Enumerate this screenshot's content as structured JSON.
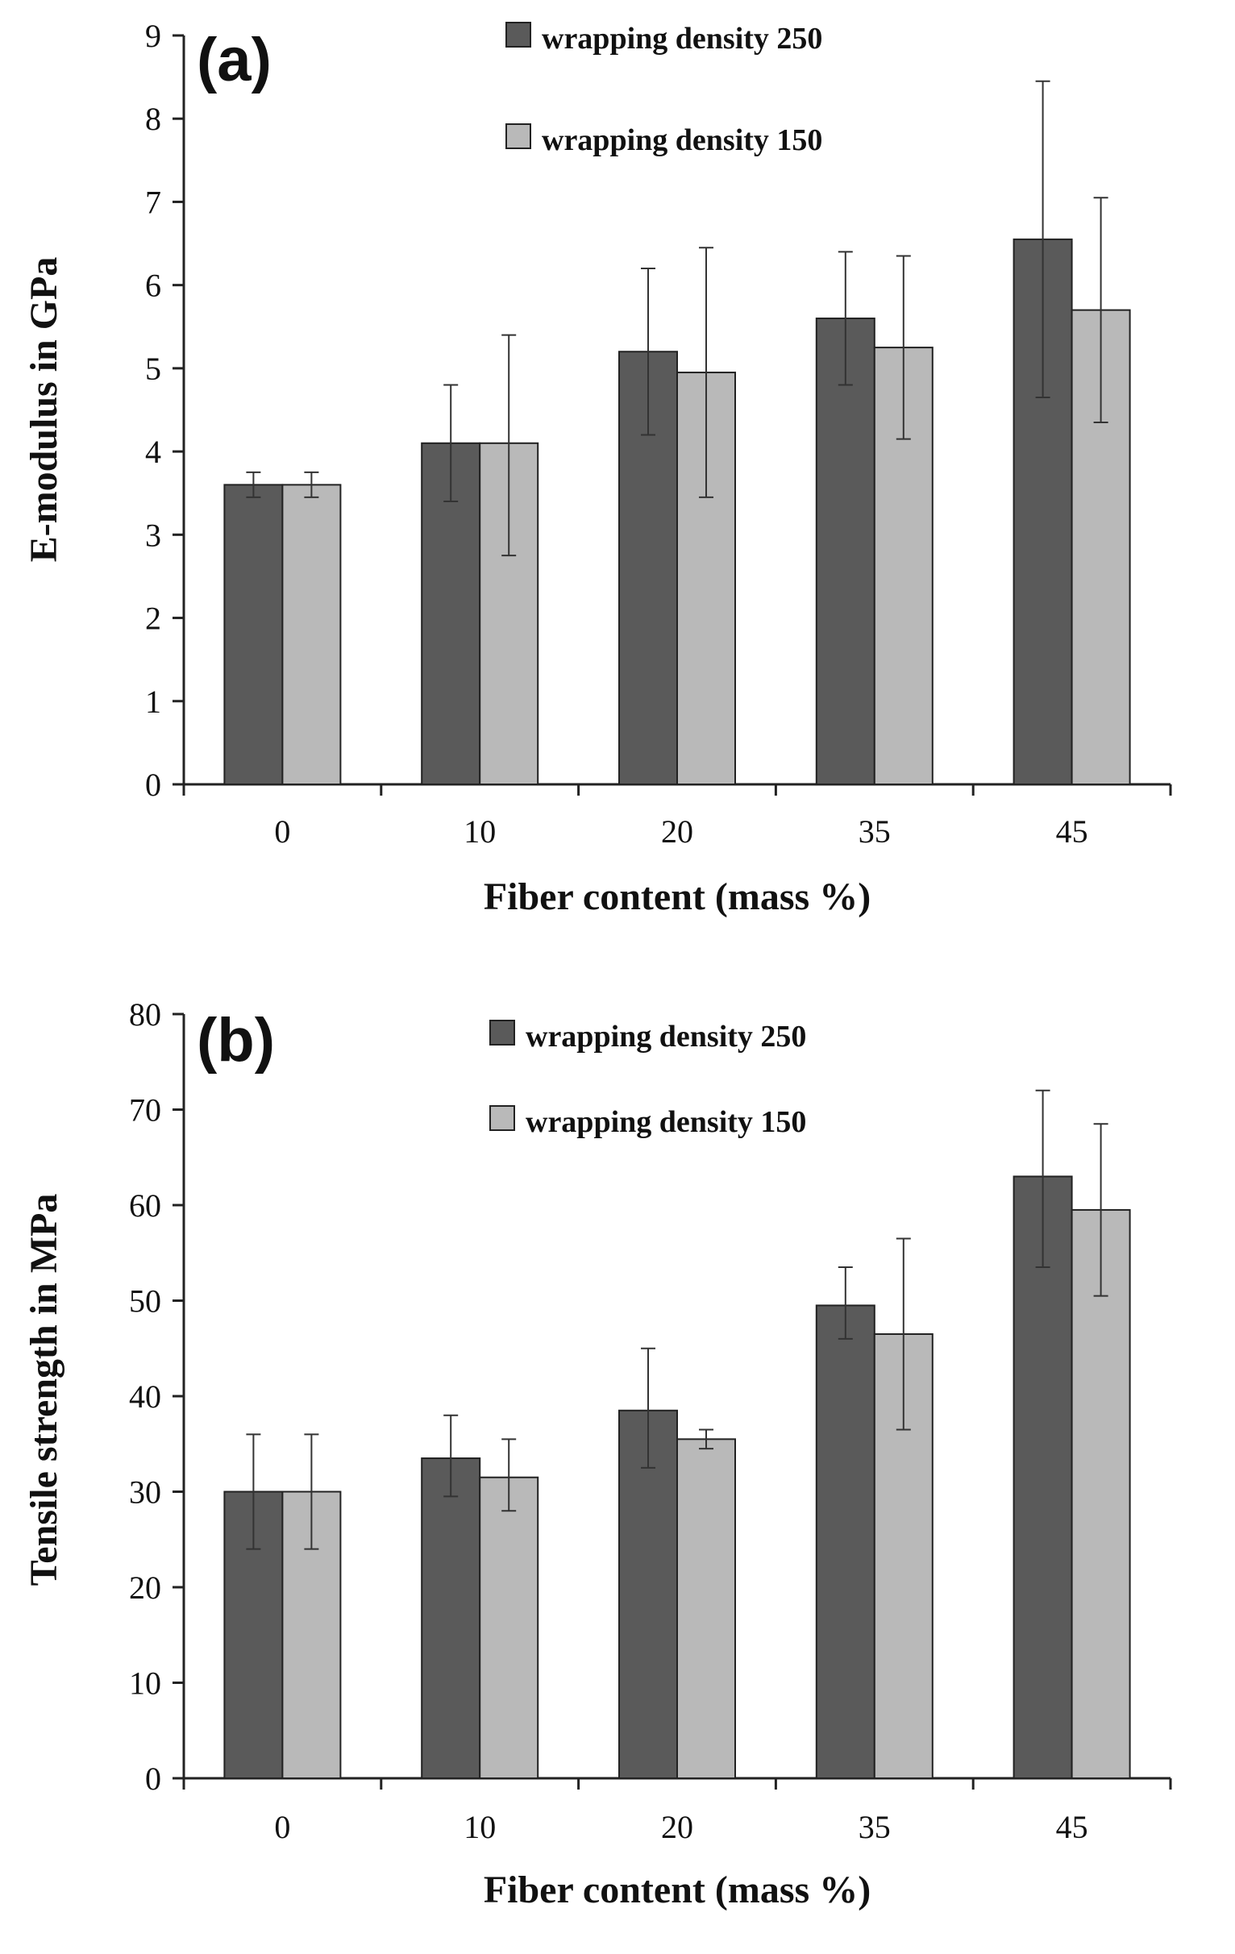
{
  "colors": {
    "series_250": "#5a5a5a",
    "series_150": "#b9b9b9",
    "axis": "#222222"
  },
  "chart_data": [
    {
      "type": "bar",
      "panel_label": "(a)",
      "title": "",
      "xlabel": "Fiber content (mass %)",
      "ylabel": "E-modulus  in GPa",
      "ylim": [
        0,
        9
      ],
      "yticks": [
        0,
        1,
        2,
        3,
        4,
        5,
        6,
        7,
        8,
        9
      ],
      "categories": [
        "0",
        "10",
        "20",
        "35",
        "45"
      ],
      "legend_position": "top-center",
      "series": [
        {
          "name": "wrapping density 250",
          "values": [
            3.6,
            4.1,
            5.2,
            5.6,
            6.55
          ],
          "error_low": [
            3.45,
            3.4,
            4.2,
            4.8,
            4.65
          ],
          "error_high": [
            3.75,
            4.8,
            6.2,
            6.4,
            8.45
          ]
        },
        {
          "name": "wrapping density 150",
          "values": [
            3.6,
            4.1,
            4.95,
            5.25,
            5.7
          ],
          "error_low": [
            3.45,
            2.75,
            3.45,
            4.15,
            4.35
          ],
          "error_high": [
            3.75,
            5.4,
            6.45,
            6.35,
            7.05
          ]
        }
      ]
    },
    {
      "type": "bar",
      "panel_label": "(b)",
      "title": "",
      "xlabel": "Fiber content (mass %)",
      "ylabel": "Tensile strength in MPa",
      "ylim": [
        0,
        80
      ],
      "yticks": [
        0,
        10,
        20,
        30,
        40,
        50,
        60,
        70,
        80
      ],
      "categories": [
        "0",
        "10",
        "20",
        "35",
        "45"
      ],
      "legend_position": "top-center",
      "series": [
        {
          "name": "wrapping density 250",
          "values": [
            30,
            33.5,
            38.5,
            49.5,
            63
          ],
          "error_low": [
            24,
            29.5,
            32.5,
            46,
            53.5
          ],
          "error_high": [
            36,
            38,
            45,
            53.5,
            72
          ]
        },
        {
          "name": "wrapping density 150",
          "values": [
            30,
            31.5,
            35.5,
            46.5,
            59.5
          ],
          "error_low": [
            24,
            28,
            34.5,
            36.5,
            50.5
          ],
          "error_high": [
            36,
            35.5,
            36.5,
            56.5,
            68.5
          ]
        }
      ]
    }
  ]
}
